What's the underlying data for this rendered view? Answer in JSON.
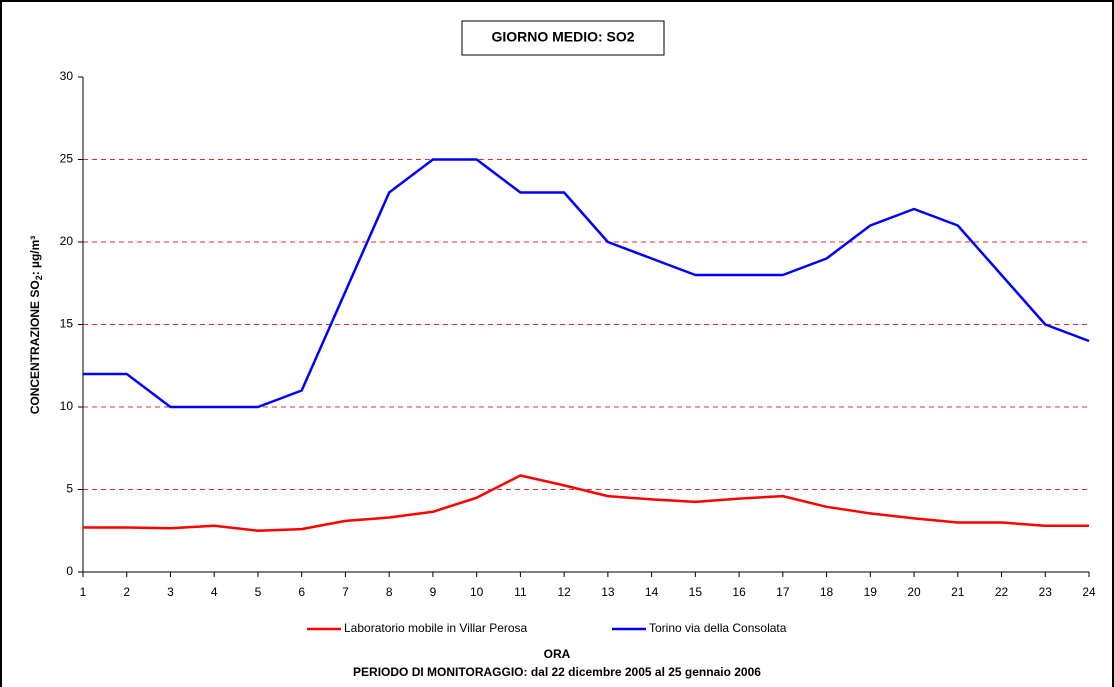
{
  "chart_data": {
    "type": "line",
    "title": "GIORNO MEDIO: SO2",
    "x_label": "ORA",
    "subtitle": "PERIODO DI MONITORAGGIO: dal 22 dicembre 2005 al 25 gennaio 2006",
    "y_label": {
      "text": "CONCENTRAZIONE SO",
      "sub": "2",
      "suffix": ": µg/m³"
    },
    "x": [
      1,
      2,
      3,
      4,
      5,
      6,
      7,
      8,
      9,
      10,
      11,
      12,
      13,
      14,
      15,
      16,
      17,
      18,
      19,
      20,
      21,
      22,
      23,
      24
    ],
    "xlim": [
      1,
      24
    ],
    "xticks": [
      1,
      2,
      3,
      4,
      5,
      6,
      7,
      8,
      9,
      10,
      11,
      12,
      13,
      14,
      15,
      16,
      17,
      18,
      19,
      20,
      21,
      22,
      23,
      24
    ],
    "ylim": [
      0,
      30
    ],
    "yticks": [
      0,
      5,
      10,
      15,
      20,
      25,
      30
    ],
    "grid": true,
    "grid_color": "#e03030",
    "legend": "bottom",
    "series": [
      {
        "name": "Laboratorio mobile in Villar Perosa",
        "color": "#ff0000",
        "values": [
          2.7,
          2.7,
          2.65,
          2.8,
          2.5,
          2.6,
          3.1,
          3.3,
          3.65,
          4.5,
          5.85,
          5.25,
          4.6,
          4.4,
          4.25,
          4.45,
          4.6,
          3.95,
          3.55,
          3.25,
          3.0,
          3.0,
          2.8,
          2.8
        ]
      },
      {
        "name": "Torino via della Consolata",
        "color": "#0000ff",
        "values": [
          12,
          12,
          10,
          10,
          10,
          11,
          17,
          23,
          25,
          25,
          23,
          23,
          20,
          19,
          18,
          18,
          18,
          19,
          21,
          22,
          21,
          18,
          15,
          14
        ]
      }
    ]
  }
}
